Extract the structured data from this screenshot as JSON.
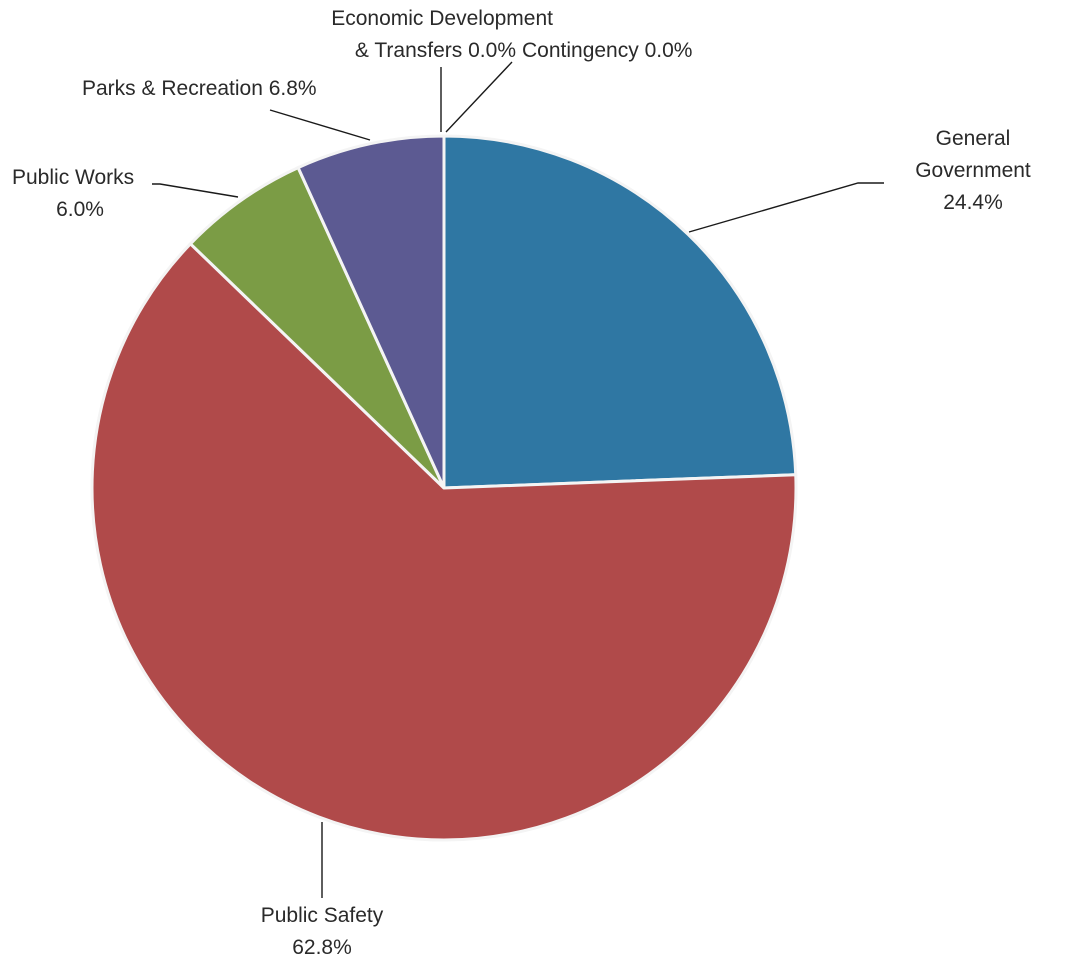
{
  "chart_data": {
    "type": "pie",
    "slices": [
      {
        "key": "general_government",
        "label_lines": [
          "General",
          "Government"
        ],
        "value_text": "24.4%",
        "value": 24.4,
        "color": "#2f77a3"
      },
      {
        "key": "public_safety",
        "label_lines": [
          "Public Safety"
        ],
        "value_text": "62.8%",
        "value": 62.8,
        "color": "#b04a4a"
      },
      {
        "key": "public_works",
        "label_lines": [
          "Public Works"
        ],
        "value_text": "6.0%",
        "value": 6.0,
        "color": "#7b9c45"
      },
      {
        "key": "parks_recreation",
        "label_lines": [
          "Parks & Recreation 6.8%"
        ],
        "value_text": "",
        "value": 6.8,
        "color": "#5c5a92"
      },
      {
        "key": "economic_development",
        "label_lines": [
          "Economic Development",
          "& Transfers 0.0%"
        ],
        "value_text": "",
        "value": 0.0,
        "color": "#5c5a92"
      },
      {
        "key": "contingency",
        "label_lines": [
          "Contingency 0.0%"
        ],
        "value_text": "",
        "value": 0.0,
        "color": "#5c5a92"
      }
    ],
    "start_angle_deg": 0,
    "direction": "clockwise",
    "legend": "none"
  }
}
